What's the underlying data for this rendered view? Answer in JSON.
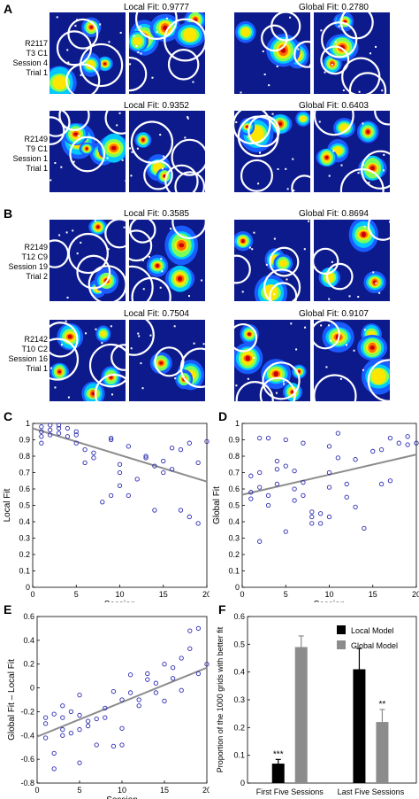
{
  "panels": {
    "A": {
      "letter": "A",
      "rows": [
        {
          "label": [
            "R2117",
            "T3 C1",
            "Session 4",
            "Trial 1"
          ],
          "local_fit": "Local Fit: 0.9777",
          "global_fit": "Global Fit: 0.2780"
        },
        {
          "label": [
            "R2149",
            "T9 C1",
            "Session 1",
            "Trial 1"
          ],
          "local_fit": "Local Fit: 0.9352",
          "global_fit": "Global Fit: 0.6403"
        }
      ]
    },
    "B": {
      "letter": "B",
      "rows": [
        {
          "label": [
            "R2149",
            "T12 C9",
            "Session 19",
            "Trial 2"
          ],
          "local_fit": "Local Fit: 0.3585",
          "global_fit": "Global Fit: 0.8694"
        },
        {
          "label": [
            "R2142",
            "T10 C2",
            "Session 16",
            "Trial 1"
          ],
          "local_fit": "Local Fit: 0.7504",
          "global_fit": "Global Fit: 0.9107"
        }
      ]
    }
  },
  "colors": {
    "heatmap_bg": "#0d1a8c",
    "circle": "#ffffff",
    "scatter_marker": "#2b2bb0",
    "regression_line": "#8c8c8c",
    "local_model": "#000000",
    "global_model": "#8c8c8c"
  },
  "chart_data": [
    {
      "panel": "C",
      "type": "scatter",
      "xlabel": "Session",
      "ylabel": "Local Fit",
      "xlim": [
        0,
        20
      ],
      "ylim": [
        0,
        1
      ],
      "xticks": [
        "0",
        "5",
        "10",
        "15",
        "20"
      ],
      "yticks": [
        "0",
        "0.1",
        "0.2",
        "0.3",
        "0.4",
        "0.5",
        "0.6",
        "0.7",
        "0.8",
        "0.9",
        "1"
      ],
      "points": [
        [
          1,
          0.98
        ],
        [
          1,
          0.95
        ],
        [
          1,
          0.92
        ],
        [
          1,
          0.88
        ],
        [
          2,
          0.99
        ],
        [
          2,
          0.96
        ],
        [
          2,
          0.93
        ],
        [
          3,
          0.99
        ],
        [
          3,
          0.97
        ],
        [
          3,
          0.94
        ],
        [
          4,
          0.97
        ],
        [
          4,
          0.92
        ],
        [
          5,
          0.95
        ],
        [
          5,
          0.93
        ],
        [
          5,
          0.88
        ],
        [
          6,
          0.84
        ],
        [
          6,
          0.76
        ],
        [
          7,
          0.82
        ],
        [
          7,
          0.79
        ],
        [
          8,
          0.52
        ],
        [
          9,
          0.9
        ],
        [
          9,
          0.56
        ],
        [
          9,
          0.91
        ],
        [
          10,
          0.75
        ],
        [
          10,
          0.7
        ],
        [
          10,
          0.62
        ],
        [
          11,
          0.86
        ],
        [
          11,
          0.56
        ],
        [
          12,
          0.66
        ],
        [
          13,
          0.8
        ],
        [
          13,
          0.79
        ],
        [
          14,
          0.47
        ],
        [
          14,
          0.74
        ],
        [
          15,
          0.77
        ],
        [
          15,
          0.7
        ],
        [
          16,
          0.85
        ],
        [
          16,
          0.72
        ],
        [
          17,
          0.84
        ],
        [
          17,
          0.47
        ],
        [
          18,
          0.88
        ],
        [
          18,
          0.43
        ],
        [
          19,
          0.39
        ],
        [
          19,
          0.76
        ],
        [
          20,
          0.89
        ]
      ],
      "fit_line": [
        [
          0,
          0.97
        ],
        [
          20,
          0.645
        ]
      ]
    },
    {
      "panel": "D",
      "type": "scatter",
      "xlabel": "Session",
      "ylabel": "Global Fit",
      "xlim": [
        0,
        20
      ],
      "ylim": [
        0,
        1
      ],
      "xticks": [
        "0",
        "5",
        "10",
        "15",
        "20"
      ],
      "yticks": [
        "0",
        "0.1",
        "0.2",
        "0.3",
        "0.4",
        "0.5",
        "0.6",
        "0.7",
        "0.8",
        "0.9",
        "1"
      ],
      "points": [
        [
          1,
          0.68
        ],
        [
          1,
          0.58
        ],
        [
          1,
          0.54
        ],
        [
          2,
          0.28
        ],
        [
          2,
          0.7
        ],
        [
          2,
          0.91
        ],
        [
          2,
          0.61
        ],
        [
          3,
          0.91
        ],
        [
          3,
          0.56
        ],
        [
          3,
          0.5
        ],
        [
          4,
          0.63
        ],
        [
          4,
          0.72
        ],
        [
          4,
          0.77
        ],
        [
          5,
          0.9
        ],
        [
          5,
          0.74
        ],
        [
          5,
          0.34
        ],
        [
          6,
          0.71
        ],
        [
          6,
          0.6
        ],
        [
          6,
          0.53
        ],
        [
          7,
          0.88
        ],
        [
          7,
          0.64
        ],
        [
          7,
          0.56
        ],
        [
          8,
          0.46
        ],
        [
          8,
          0.39
        ],
        [
          8,
          0.43
        ],
        [
          9,
          0.45
        ],
        [
          9,
          0.39
        ],
        [
          10,
          0.43
        ],
        [
          10,
          0.61
        ],
        [
          10,
          0.7
        ],
        [
          10,
          0.86
        ],
        [
          11,
          0.94
        ],
        [
          11,
          0.79
        ],
        [
          12,
          0.63
        ],
        [
          12,
          0.55
        ],
        [
          13,
          0.78
        ],
        [
          13,
          0.49
        ],
        [
          14,
          0.36
        ],
        [
          15,
          0.83
        ],
        [
          16,
          0.84
        ],
        [
          16,
          0.63
        ],
        [
          17,
          0.91
        ],
        [
          17,
          0.65
        ],
        [
          18,
          0.88
        ],
        [
          19,
          0.92
        ],
        [
          19,
          0.87
        ],
        [
          20,
          0.88
        ]
      ],
      "fit_line": [
        [
          0,
          0.565
        ],
        [
          20,
          0.81
        ]
      ]
    },
    {
      "panel": "E",
      "type": "scatter",
      "xlabel": "Session",
      "ylabel": "Global Fit – Local Fit",
      "xlim": [
        0,
        20
      ],
      "ylim": [
        -0.8,
        0.6
      ],
      "xticks": [
        "0",
        "5",
        "10",
        "15",
        "20"
      ],
      "yticks": [
        "-0.8",
        "-0.6",
        "-0.4",
        "-0.2",
        "0",
        "0.2",
        "0.4",
        "0.6"
      ],
      "points": [
        [
          1,
          -0.3
        ],
        [
          1,
          -0.42
        ],
        [
          1,
          -0.25
        ],
        [
          2,
          -0.55
        ],
        [
          2,
          -0.22
        ],
        [
          2,
          -0.68
        ],
        [
          3,
          -0.4
        ],
        [
          3,
          -0.25
        ],
        [
          3,
          -0.15
        ],
        [
          3,
          -0.35
        ],
        [
          4,
          -0.2
        ],
        [
          4,
          -0.38
        ],
        [
          5,
          -0.06
        ],
        [
          5,
          -0.23
        ],
        [
          5,
          -0.63
        ],
        [
          5,
          -0.35
        ],
        [
          6,
          -0.28
        ],
        [
          6,
          -0.32
        ],
        [
          7,
          -0.48
        ],
        [
          7,
          -0.26
        ],
        [
          8,
          -0.25
        ],
        [
          8,
          -0.17
        ],
        [
          9,
          -0.49
        ],
        [
          9,
          -0.03
        ],
        [
          10,
          -0.48
        ],
        [
          10,
          -0.1
        ],
        [
          10,
          -0.34
        ],
        [
          11,
          0.11
        ],
        [
          11,
          -0.04
        ],
        [
          12,
          -0.1
        ],
        [
          12,
          -0.15
        ],
        [
          13,
          0.12
        ],
        [
          13,
          0.07
        ],
        [
          14,
          -0.04
        ],
        [
          14,
          0.04
        ],
        [
          15,
          -0.11
        ],
        [
          15,
          0.2
        ],
        [
          16,
          0.17
        ],
        [
          16,
          0.08
        ],
        [
          17,
          0.25
        ],
        [
          17,
          -0.02
        ],
        [
          18,
          0.33
        ],
        [
          18,
          0.48
        ],
        [
          19,
          0.5
        ],
        [
          19,
          0.12
        ],
        [
          20,
          0.2
        ]
      ],
      "fit_line": [
        [
          0,
          -0.41
        ],
        [
          20,
          0.17
        ]
      ]
    },
    {
      "panel": "F",
      "type": "bar",
      "ylabel": "Proportion of the 1000 grids with better fit",
      "ylim": [
        0,
        0.6
      ],
      "yticks": [
        "0",
        "0.1",
        "0.2",
        "0.3",
        "0.4",
        "0.5",
        "0.6"
      ],
      "categories": [
        "First Five Sessions",
        "Last Five Sessions"
      ],
      "series": [
        {
          "name": "Local Model",
          "values": [
            0.07,
            0.41
          ],
          "errors": [
            0.015,
            0.075
          ]
        },
        {
          "name": "Global Model",
          "values": [
            0.49,
            0.22
          ],
          "errors": [
            0.04,
            0.045
          ]
        }
      ],
      "annotations": [
        {
          "category": "First Five Sessions",
          "series": "Local Model",
          "text": "***"
        },
        {
          "category": "Last Five Sessions",
          "series": "Global Model",
          "text": "**"
        }
      ],
      "legend_position": "top-right"
    }
  ]
}
